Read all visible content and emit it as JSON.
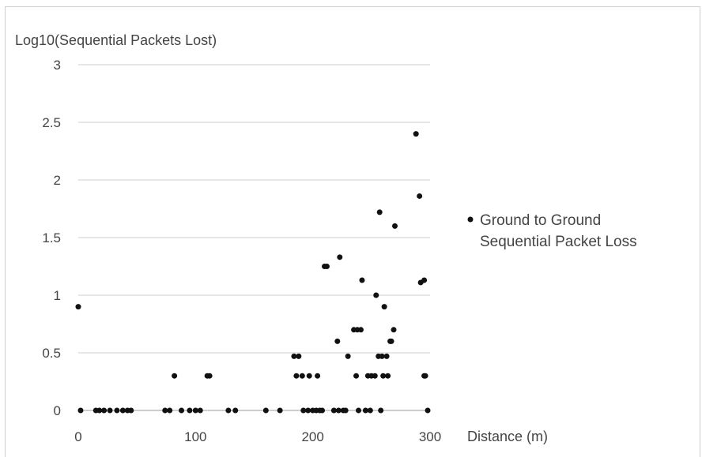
{
  "chart_data": {
    "type": "scatter",
    "title": "",
    "ylabel": "Log10(Sequential Packets Lost)",
    "xlabel": "Distance (m)",
    "xlim": [
      0,
      300
    ],
    "ylim": [
      0,
      3
    ],
    "xticks": [
      0,
      100,
      200,
      300
    ],
    "yticks": [
      0,
      0.5,
      1,
      1.5,
      2,
      2.5,
      3
    ],
    "ytick_labels": [
      "0",
      "0.5",
      "1",
      "1.5",
      "2",
      "2.5",
      "3"
    ],
    "grid": "horizontal",
    "legend_position": "right",
    "marker_color": "#111111",
    "series": [
      {
        "name_lines": [
          "Ground to Ground",
          "Sequential Packet Loss"
        ],
        "points": [
          [
            0,
            0.9
          ],
          [
            2,
            0
          ],
          [
            15,
            0
          ],
          [
            18,
            0
          ],
          [
            22,
            0
          ],
          [
            27,
            0
          ],
          [
            33,
            0
          ],
          [
            38,
            0
          ],
          [
            42,
            0
          ],
          [
            45,
            0
          ],
          [
            74,
            0
          ],
          [
            78,
            0
          ],
          [
            82,
            0.3
          ],
          [
            88,
            0
          ],
          [
            95,
            0
          ],
          [
            100,
            0
          ],
          [
            104,
            0
          ],
          [
            110,
            0.3
          ],
          [
            112,
            0.3
          ],
          [
            128,
            0
          ],
          [
            134,
            0
          ],
          [
            160,
            0
          ],
          [
            172,
            0
          ],
          [
            184,
            0.47
          ],
          [
            186,
            0.3
          ],
          [
            188,
            0.47
          ],
          [
            191,
            0.3
          ],
          [
            192,
            0
          ],
          [
            196,
            0
          ],
          [
            197,
            0.3
          ],
          [
            200,
            0
          ],
          [
            203,
            0
          ],
          [
            204,
            0.3
          ],
          [
            206,
            0
          ],
          [
            208,
            0
          ],
          [
            210,
            1.25
          ],
          [
            212,
            1.25
          ],
          [
            218,
            0
          ],
          [
            221,
            0.6
          ],
          [
            222,
            0
          ],
          [
            223,
            1.33
          ],
          [
            226,
            0
          ],
          [
            228,
            0
          ],
          [
            230,
            0.47
          ],
          [
            235,
            0.7
          ],
          [
            237,
            0.3
          ],
          [
            238,
            0.7
          ],
          [
            239,
            0
          ],
          [
            241,
            0.7
          ],
          [
            242,
            1.13
          ],
          [
            245,
            0
          ],
          [
            247,
            0.3
          ],
          [
            249,
            0
          ],
          [
            250,
            0.3
          ],
          [
            253,
            0.3
          ],
          [
            254,
            1.0
          ],
          [
            256,
            0.47
          ],
          [
            257,
            1.72
          ],
          [
            258,
            0
          ],
          [
            259,
            0.47
          ],
          [
            260,
            0.3
          ],
          [
            261,
            0.9
          ],
          [
            263,
            0.47
          ],
          [
            264,
            0.3
          ],
          [
            266,
            0.6
          ],
          [
            267,
            0.6
          ],
          [
            269,
            0.7
          ],
          [
            270,
            1.6
          ],
          [
            288,
            2.4
          ],
          [
            291,
            1.86
          ],
          [
            292,
            1.11
          ],
          [
            295,
            1.13
          ],
          [
            295,
            0.3
          ],
          [
            296,
            0.3
          ],
          [
            298,
            0
          ]
        ]
      }
    ]
  }
}
